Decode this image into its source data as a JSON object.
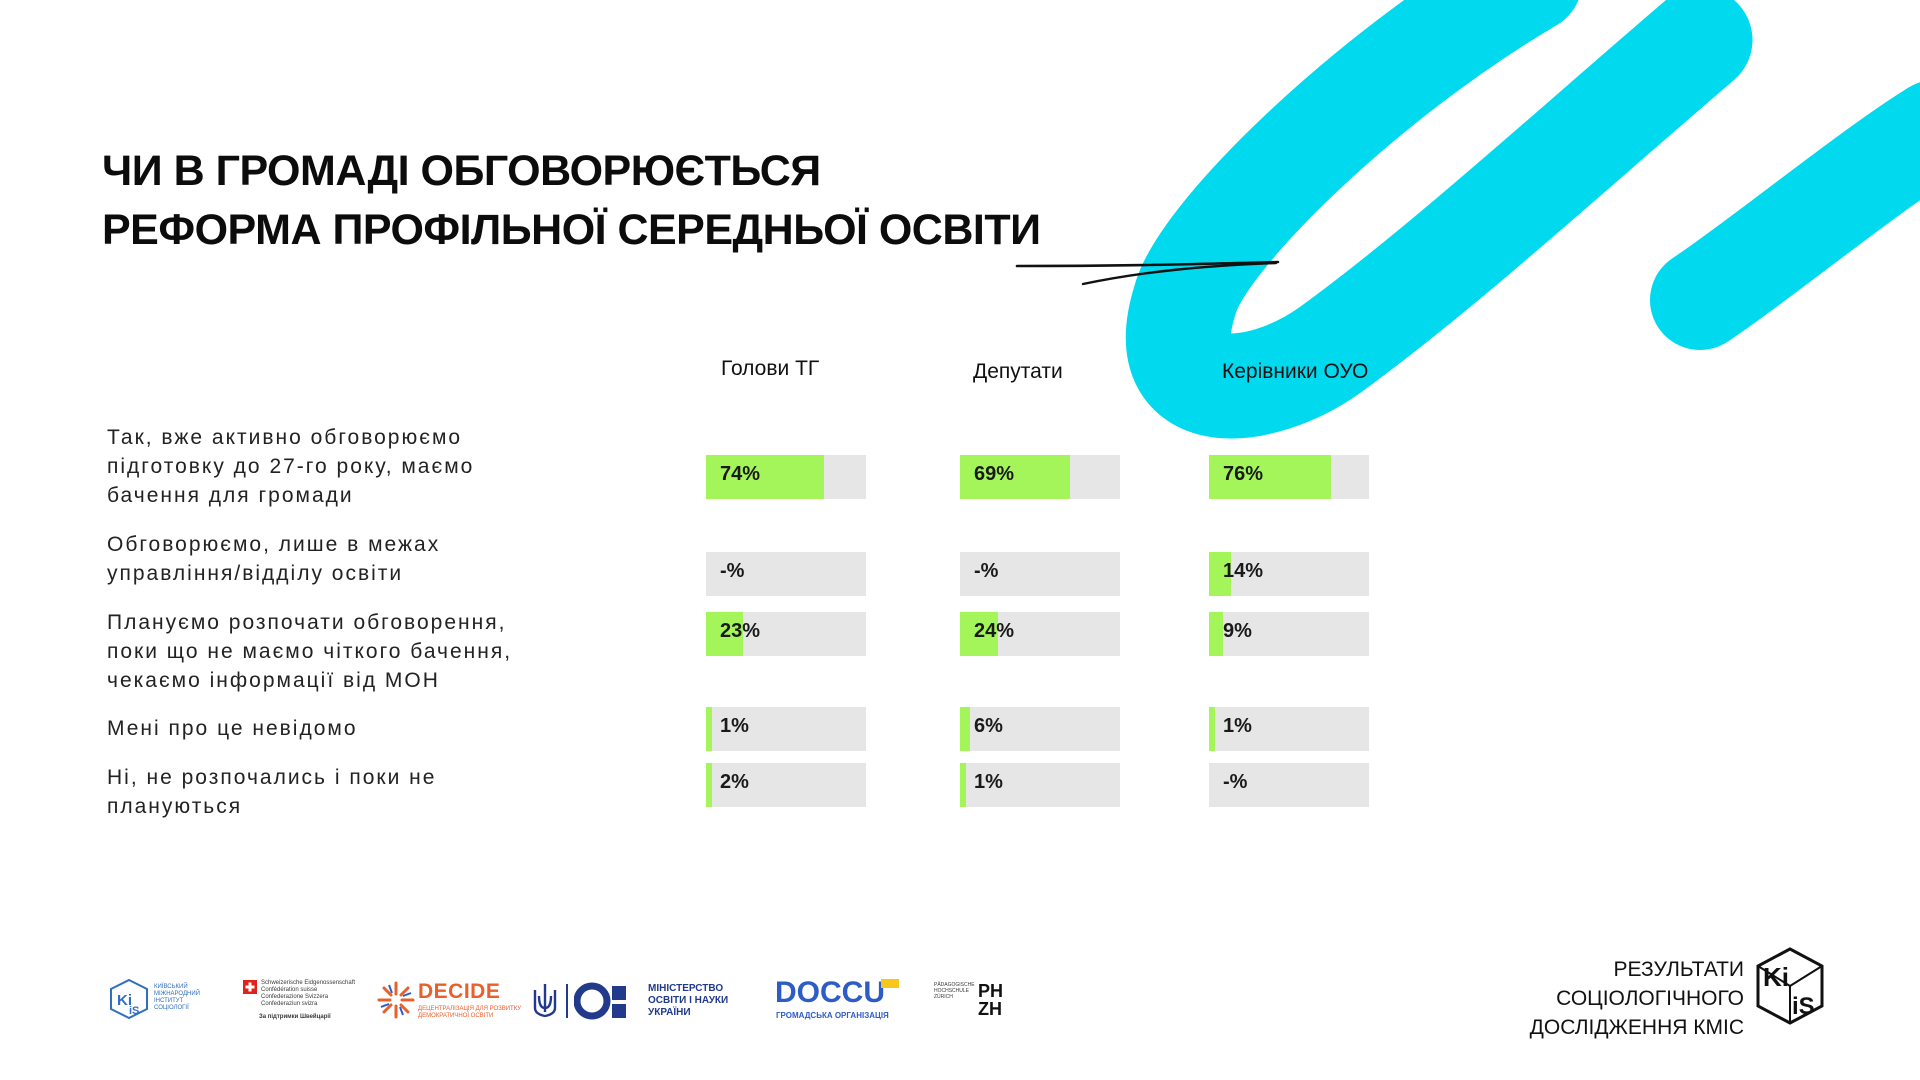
{
  "title": {
    "line1": "ЧИ В ГРОМАДІ ОБГОВОРЮЄТЬСЯ",
    "line2": "РЕФОРМА ПРОФІЛЬНОЇ СЕРЕДНЬОЇ ОСВІТИ"
  },
  "colors": {
    "accent_cyan": "#00d9ee",
    "bar_fill": "#a3f55a",
    "bar_track": "#e6e6e6"
  },
  "chart_data": {
    "type": "bar",
    "orientation": "horizontal",
    "unit": "%",
    "ylim": [
      0,
      100
    ],
    "groups": [
      "Голови ТГ",
      "Депутати",
      "Керівники ОУО"
    ],
    "categories": [
      [
        "Так, вже активно обговорюємо",
        "підготовку до 27-го року, маємо",
        "бачення для громади"
      ],
      [
        "Обговорюємо, лише в межах",
        "управління/відділу освіти"
      ],
      [
        "Плануємо розпочати обговорення,",
        "поки що не маємо чіткого бачення,",
        "чекаємо інформації від МОН"
      ],
      [
        "Мені про це невідомо"
      ],
      [
        "Ні, не розпочались і поки не",
        "плануються"
      ]
    ],
    "series": [
      {
        "name": "Голови ТГ",
        "values": [
          74,
          null,
          23,
          1,
          2
        ],
        "labels": [
          "74%",
          "-%",
          "23%",
          "1%",
          "2%"
        ]
      },
      {
        "name": "Депутати",
        "values": [
          69,
          null,
          24,
          6,
          1
        ],
        "labels": [
          "69%",
          "-%",
          "24%",
          "6%",
          "1%"
        ]
      },
      {
        "name": "Керівники ОУО",
        "values": [
          76,
          14,
          9,
          1,
          null
        ],
        "labels": [
          "76%",
          "14%",
          "9%",
          "1%",
          "-%"
        ]
      }
    ]
  },
  "footer": {
    "logo_kiis_small": [
      "КИЇВСЬКИЙ",
      "МІЖНАРОДНИЙ",
      "ІНСТИТУТ",
      "СОЦІОЛОГІЇ"
    ],
    "logo_swiss": [
      "Schweizerische Eidgenossenschaft",
      "Confédération suisse",
      "Confederazione Svizzera",
      "Confederaziun svizra"
    ],
    "logo_swiss_sub": "За підтримки Швейцарії",
    "logo_decide": "DECIDE",
    "logo_decide_sub": [
      "ДЕЦЕНТРАЛІЗАЦІЯ ДЛЯ РОЗВИТКУ",
      "ДЕМОКРАТИЧНОЇ ОСВІТИ"
    ],
    "logo_mon": [
      "МІНІСТЕРСТВО",
      "ОСВІТИ І НАУКИ",
      "УКРАЇНИ"
    ],
    "logo_doccu": "DOCCU",
    "logo_doccu_sub": "ГРОМАДСЬКА ОРГАНІЗАЦІЯ",
    "logo_phzh_small": [
      "PÄDAGOGISCHE",
      "HOCHSCHULE",
      "ZÜRICH"
    ],
    "logo_phzh": [
      "PH",
      "ZH"
    ],
    "brand_lines": [
      "РЕЗУЛЬТАТИ",
      "СОЦІОЛОГІЧНОГО",
      "ДОСЛІДЖЕННЯ КМІС"
    ],
    "brand_logo": [
      "Ki",
      "iS"
    ]
  }
}
